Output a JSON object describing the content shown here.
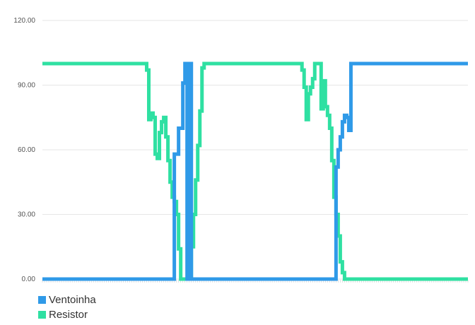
{
  "chart_data": {
    "type": "line",
    "title": "",
    "xlabel": "",
    "ylabel": "",
    "ylim": [
      0,
      120
    ],
    "y_ticks": [
      "0.00",
      "30.00",
      "60.00",
      "90.00",
      "120.00"
    ],
    "grid": true,
    "legend_position": "bottom-left",
    "series": [
      {
        "name": "Ventoinha",
        "color": "#2f9ae8",
        "points": [
          [
            0,
            0
          ],
          [
            62,
            0
          ],
          [
            62,
            58
          ],
          [
            64,
            58
          ],
          [
            64,
            70
          ],
          [
            66,
            70
          ],
          [
            66,
            91
          ],
          [
            67,
            91
          ],
          [
            67,
            100
          ],
          [
            68,
            100
          ],
          [
            68,
            0
          ],
          [
            69,
            0
          ],
          [
            69,
            100
          ],
          [
            70,
            100
          ],
          [
            70,
            0
          ],
          [
            138,
            0
          ],
          [
            138,
            52
          ],
          [
            139,
            52
          ],
          [
            139,
            60
          ],
          [
            140,
            60
          ],
          [
            140,
            66
          ],
          [
            141,
            66
          ],
          [
            141,
            73
          ],
          [
            142,
            73
          ],
          [
            142,
            76
          ],
          [
            143,
            76
          ],
          [
            143,
            75
          ],
          [
            144,
            75
          ],
          [
            144,
            69
          ],
          [
            145,
            69
          ],
          [
            145,
            100
          ],
          [
            200,
            100
          ]
        ]
      },
      {
        "name": "Resistor",
        "color": "#2fe0a2",
        "points": [
          [
            0,
            100
          ],
          [
            49,
            100
          ],
          [
            49,
            97
          ],
          [
            50,
            97
          ],
          [
            50,
            74
          ],
          [
            51,
            74
          ],
          [
            51,
            77
          ],
          [
            52,
            77
          ],
          [
            52,
            75
          ],
          [
            53,
            75
          ],
          [
            53,
            58
          ],
          [
            54,
            58
          ],
          [
            54,
            56
          ],
          [
            55,
            56
          ],
          [
            55,
            68
          ],
          [
            56,
            68
          ],
          [
            56,
            73
          ],
          [
            57,
            73
          ],
          [
            57,
            75
          ],
          [
            58,
            75
          ],
          [
            58,
            66
          ],
          [
            59,
            66
          ],
          [
            59,
            55
          ],
          [
            60,
            55
          ],
          [
            60,
            45
          ],
          [
            61,
            45
          ],
          [
            61,
            38
          ],
          [
            62,
            38
          ],
          [
            62,
            36
          ],
          [
            63,
            36
          ],
          [
            63,
            30
          ],
          [
            64,
            30
          ],
          [
            64,
            14
          ],
          [
            65,
            14
          ],
          [
            65,
            0
          ],
          [
            70,
            0
          ],
          [
            70,
            15
          ],
          [
            71,
            15
          ],
          [
            71,
            30
          ],
          [
            72,
            30
          ],
          [
            72,
            46
          ],
          [
            73,
            46
          ],
          [
            73,
            62
          ],
          [
            74,
            62
          ],
          [
            74,
            78
          ],
          [
            75,
            78
          ],
          [
            75,
            98
          ],
          [
            76,
            98
          ],
          [
            76,
            100
          ],
          [
            122,
            100
          ],
          [
            122,
            97
          ],
          [
            123,
            97
          ],
          [
            123,
            89
          ],
          [
            124,
            89
          ],
          [
            124,
            74
          ],
          [
            125,
            74
          ],
          [
            125,
            86
          ],
          [
            126,
            86
          ],
          [
            126,
            89
          ],
          [
            127,
            89
          ],
          [
            127,
            93
          ],
          [
            128,
            93
          ],
          [
            128,
            100
          ],
          [
            131,
            100
          ],
          [
            131,
            79
          ],
          [
            132,
            79
          ],
          [
            132,
            92
          ],
          [
            133,
            92
          ],
          [
            133,
            80
          ],
          [
            134,
            80
          ],
          [
            134,
            76
          ],
          [
            135,
            76
          ],
          [
            135,
            70
          ],
          [
            136,
            70
          ],
          [
            136,
            55
          ],
          [
            137,
            55
          ],
          [
            137,
            38
          ],
          [
            138,
            38
          ],
          [
            138,
            30
          ],
          [
            139,
            30
          ],
          [
            139,
            20
          ],
          [
            140,
            20
          ],
          [
            140,
            8
          ],
          [
            141,
            8
          ],
          [
            141,
            3
          ],
          [
            142,
            3
          ],
          [
            142,
            0
          ],
          [
            200,
            0
          ]
        ]
      }
    ],
    "x_count": 200
  }
}
